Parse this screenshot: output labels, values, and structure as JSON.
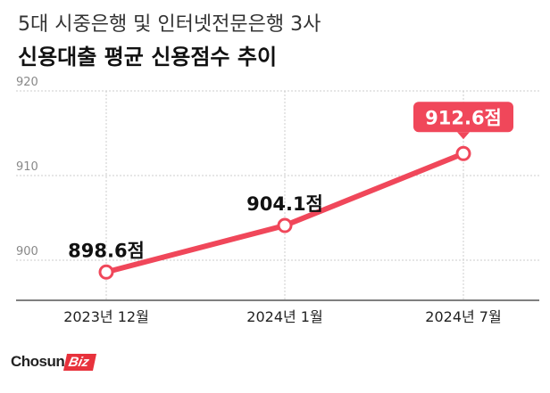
{
  "header": {
    "subtitle": "5대 시중은행 및 인터넷전문은행 3사",
    "title": "신용대출 평균 신용점수 추이"
  },
  "chart_data": {
    "type": "line",
    "title": "신용대출 평균 신용점수 추이",
    "subtitle": "5대 시중은행 및 인터넷전문은행 3사",
    "categories": [
      "2023년 12월",
      "2024년 1월",
      "2024년 7월"
    ],
    "series": [
      {
        "values": [
          898.6,
          904.1,
          912.6
        ]
      }
    ],
    "data_labels": [
      "898.6점",
      "904.1점",
      "912.6점"
    ],
    "ylim": [
      900,
      920
    ],
    "yticks": [
      "900",
      "910",
      "920"
    ],
    "grid": true,
    "highlight_last_point": true,
    "colors": {
      "line": "#f0475a",
      "highlight": "#f0475a",
      "grid": "#cccccc",
      "axis": "#555555"
    }
  },
  "brand": {
    "part1": "Chosun",
    "part2": "Biz"
  }
}
